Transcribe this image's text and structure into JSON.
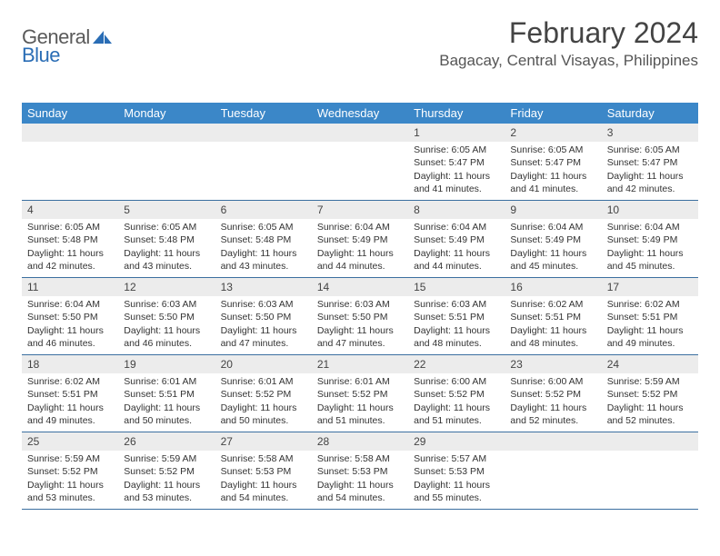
{
  "logo": {
    "part1": "General",
    "part2": "Blue"
  },
  "title": "February 2024",
  "location": "Bagacay, Central Visayas, Philippines",
  "weekday_header_bg": "#3b87c8",
  "weekday_header_fg": "#ffffff",
  "daynum_bg": "#ececec",
  "week_border_color": "#3b6fa0",
  "text_color": "#333333",
  "weekdays": [
    "Sunday",
    "Monday",
    "Tuesday",
    "Wednesday",
    "Thursday",
    "Friday",
    "Saturday"
  ],
  "weeks": [
    [
      {
        "empty": true
      },
      {
        "empty": true
      },
      {
        "empty": true
      },
      {
        "empty": true
      },
      {
        "day": "1",
        "sunrise": "Sunrise: 6:05 AM",
        "sunset": "Sunset: 5:47 PM",
        "daylight": "Daylight: 11 hours and 41 minutes."
      },
      {
        "day": "2",
        "sunrise": "Sunrise: 6:05 AM",
        "sunset": "Sunset: 5:47 PM",
        "daylight": "Daylight: 11 hours and 41 minutes."
      },
      {
        "day": "3",
        "sunrise": "Sunrise: 6:05 AM",
        "sunset": "Sunset: 5:47 PM",
        "daylight": "Daylight: 11 hours and 42 minutes."
      }
    ],
    [
      {
        "day": "4",
        "sunrise": "Sunrise: 6:05 AM",
        "sunset": "Sunset: 5:48 PM",
        "daylight": "Daylight: 11 hours and 42 minutes."
      },
      {
        "day": "5",
        "sunrise": "Sunrise: 6:05 AM",
        "sunset": "Sunset: 5:48 PM",
        "daylight": "Daylight: 11 hours and 43 minutes."
      },
      {
        "day": "6",
        "sunrise": "Sunrise: 6:05 AM",
        "sunset": "Sunset: 5:48 PM",
        "daylight": "Daylight: 11 hours and 43 minutes."
      },
      {
        "day": "7",
        "sunrise": "Sunrise: 6:04 AM",
        "sunset": "Sunset: 5:49 PM",
        "daylight": "Daylight: 11 hours and 44 minutes."
      },
      {
        "day": "8",
        "sunrise": "Sunrise: 6:04 AM",
        "sunset": "Sunset: 5:49 PM",
        "daylight": "Daylight: 11 hours and 44 minutes."
      },
      {
        "day": "9",
        "sunrise": "Sunrise: 6:04 AM",
        "sunset": "Sunset: 5:49 PM",
        "daylight": "Daylight: 11 hours and 45 minutes."
      },
      {
        "day": "10",
        "sunrise": "Sunrise: 6:04 AM",
        "sunset": "Sunset: 5:49 PM",
        "daylight": "Daylight: 11 hours and 45 minutes."
      }
    ],
    [
      {
        "day": "11",
        "sunrise": "Sunrise: 6:04 AM",
        "sunset": "Sunset: 5:50 PM",
        "daylight": "Daylight: 11 hours and 46 minutes."
      },
      {
        "day": "12",
        "sunrise": "Sunrise: 6:03 AM",
        "sunset": "Sunset: 5:50 PM",
        "daylight": "Daylight: 11 hours and 46 minutes."
      },
      {
        "day": "13",
        "sunrise": "Sunrise: 6:03 AM",
        "sunset": "Sunset: 5:50 PM",
        "daylight": "Daylight: 11 hours and 47 minutes."
      },
      {
        "day": "14",
        "sunrise": "Sunrise: 6:03 AM",
        "sunset": "Sunset: 5:50 PM",
        "daylight": "Daylight: 11 hours and 47 minutes."
      },
      {
        "day": "15",
        "sunrise": "Sunrise: 6:03 AM",
        "sunset": "Sunset: 5:51 PM",
        "daylight": "Daylight: 11 hours and 48 minutes."
      },
      {
        "day": "16",
        "sunrise": "Sunrise: 6:02 AM",
        "sunset": "Sunset: 5:51 PM",
        "daylight": "Daylight: 11 hours and 48 minutes."
      },
      {
        "day": "17",
        "sunrise": "Sunrise: 6:02 AM",
        "sunset": "Sunset: 5:51 PM",
        "daylight": "Daylight: 11 hours and 49 minutes."
      }
    ],
    [
      {
        "day": "18",
        "sunrise": "Sunrise: 6:02 AM",
        "sunset": "Sunset: 5:51 PM",
        "daylight": "Daylight: 11 hours and 49 minutes."
      },
      {
        "day": "19",
        "sunrise": "Sunrise: 6:01 AM",
        "sunset": "Sunset: 5:51 PM",
        "daylight": "Daylight: 11 hours and 50 minutes."
      },
      {
        "day": "20",
        "sunrise": "Sunrise: 6:01 AM",
        "sunset": "Sunset: 5:52 PM",
        "daylight": "Daylight: 11 hours and 50 minutes."
      },
      {
        "day": "21",
        "sunrise": "Sunrise: 6:01 AM",
        "sunset": "Sunset: 5:52 PM",
        "daylight": "Daylight: 11 hours and 51 minutes."
      },
      {
        "day": "22",
        "sunrise": "Sunrise: 6:00 AM",
        "sunset": "Sunset: 5:52 PM",
        "daylight": "Daylight: 11 hours and 51 minutes."
      },
      {
        "day": "23",
        "sunrise": "Sunrise: 6:00 AM",
        "sunset": "Sunset: 5:52 PM",
        "daylight": "Daylight: 11 hours and 52 minutes."
      },
      {
        "day": "24",
        "sunrise": "Sunrise: 5:59 AM",
        "sunset": "Sunset: 5:52 PM",
        "daylight": "Daylight: 11 hours and 52 minutes."
      }
    ],
    [
      {
        "day": "25",
        "sunrise": "Sunrise: 5:59 AM",
        "sunset": "Sunset: 5:52 PM",
        "daylight": "Daylight: 11 hours and 53 minutes."
      },
      {
        "day": "26",
        "sunrise": "Sunrise: 5:59 AM",
        "sunset": "Sunset: 5:52 PM",
        "daylight": "Daylight: 11 hours and 53 minutes."
      },
      {
        "day": "27",
        "sunrise": "Sunrise: 5:58 AM",
        "sunset": "Sunset: 5:53 PM",
        "daylight": "Daylight: 11 hours and 54 minutes."
      },
      {
        "day": "28",
        "sunrise": "Sunrise: 5:58 AM",
        "sunset": "Sunset: 5:53 PM",
        "daylight": "Daylight: 11 hours and 54 minutes."
      },
      {
        "day": "29",
        "sunrise": "Sunrise: 5:57 AM",
        "sunset": "Sunset: 5:53 PM",
        "daylight": "Daylight: 11 hours and 55 minutes."
      },
      {
        "empty": true
      },
      {
        "empty": true
      }
    ]
  ]
}
